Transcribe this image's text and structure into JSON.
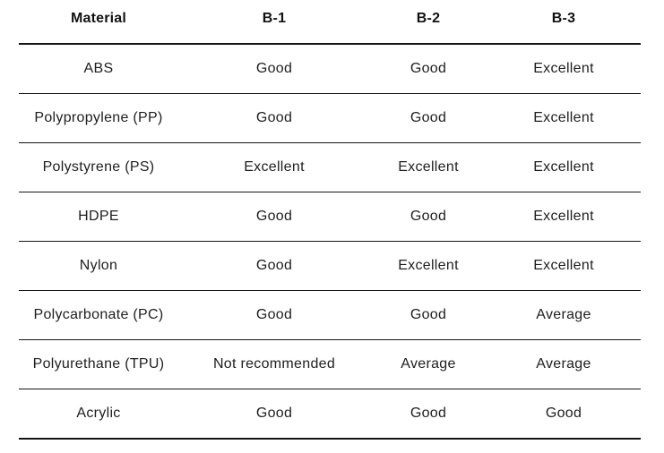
{
  "chart_data": {
    "type": "table",
    "title": "",
    "columns": [
      "Material",
      "B-1",
      "B-2",
      "B-3"
    ],
    "rows": [
      [
        "ABS",
        "Good",
        "Good",
        "Excellent"
      ],
      [
        "Polypropylene (PP)",
        "Good",
        "Good",
        "Excellent"
      ],
      [
        "Polystyrene (PS)",
        "Excellent",
        "Excellent",
        "Excellent"
      ],
      [
        "HDPE",
        "Good",
        "Good",
        "Excellent"
      ],
      [
        "Nylon",
        "Good",
        "Excellent",
        "Excellent"
      ],
      [
        "Polycarbonate (PC)",
        "Good",
        "Good",
        "Average"
      ],
      [
        "Polyurethane (TPU)",
        "Not recommended",
        "Average",
        "Average"
      ],
      [
        "Acrylic",
        "Good",
        "Good",
        "Good"
      ]
    ],
    "layout": {
      "header_style": "bold",
      "cell_alignment": "center",
      "grid": "horizontal-rules-only",
      "header_rule_thickness_px": 2,
      "row_rule_thickness_px": 1
    }
  },
  "colors": {
    "background": "#ffffff",
    "header_text": "#121212",
    "body_text": "#1e1e1e",
    "rule": "#141414"
  }
}
